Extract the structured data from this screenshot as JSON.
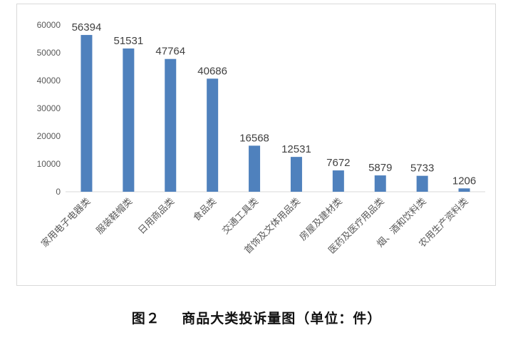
{
  "caption": "图２    商品大类投诉量图（单位：件）",
  "colors": {
    "bar": "#4f81bd",
    "axis": "#d9d9d9",
    "text": "#595959",
    "label": "#404040"
  },
  "chart_data": {
    "type": "bar",
    "categories": [
      "家用电子电器类",
      "服装鞋帽类",
      "日用商品类",
      "食品类",
      "交通工具类",
      "首饰及文体用品类",
      "房屋及建材类",
      "医药及医疗用品类",
      "烟、酒和饮料类",
      "农用生产资料类"
    ],
    "values": [
      56394,
      51531,
      47764,
      40686,
      16568,
      12531,
      7672,
      5879,
      5733,
      1206
    ],
    "data_labels": [
      "56394",
      "51531",
      "47764",
      "40686",
      "16568",
      "12531",
      "7672",
      "5879",
      "5733",
      "1206"
    ],
    "yticks": [
      "0",
      "10000",
      "20000",
      "30000",
      "40000",
      "50000",
      "60000"
    ],
    "ylim": [
      0,
      60000
    ],
    "grid": false,
    "legend": "none"
  }
}
